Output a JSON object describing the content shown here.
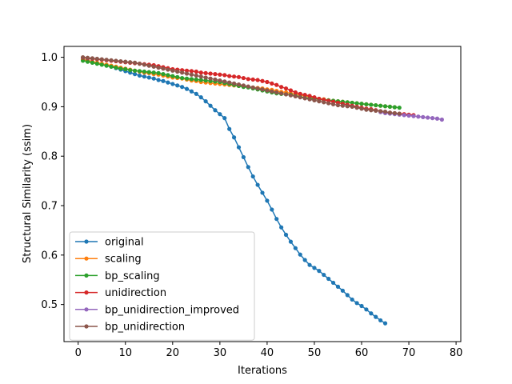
{
  "chart_data": {
    "type": "line",
    "title": "",
    "xlabel": "Iterations",
    "ylabel": "Structural Similarity (ssim)",
    "xlim": [
      -3,
      81
    ],
    "ylim": [
      0.425,
      1.022
    ],
    "xticks": [
      0,
      10,
      20,
      30,
      40,
      50,
      60,
      70,
      80
    ],
    "yticks": [
      0.5,
      0.6,
      0.7,
      0.8,
      0.9,
      1.0
    ],
    "xtick_labels": [
      "0",
      "10",
      "20",
      "30",
      "40",
      "50",
      "60",
      "70",
      "80"
    ],
    "ytick_labels": [
      "0.5",
      "0.6",
      "0.7",
      "0.8",
      "0.9",
      "1.0"
    ],
    "grid": false,
    "legend_position": "lower-left",
    "markers": true,
    "series": [
      {
        "name": "original",
        "color": "#1f77b4",
        "x_start": 1,
        "values": [
          0.995,
          0.994,
          0.991,
          0.988,
          0.986,
          0.984,
          0.981,
          0.978,
          0.975,
          0.972,
          0.969,
          0.966,
          0.963,
          0.961,
          0.959,
          0.957,
          0.954,
          0.952,
          0.949,
          0.946,
          0.943,
          0.94,
          0.936,
          0.931,
          0.926,
          0.919,
          0.911,
          0.902,
          0.893,
          0.885,
          0.877,
          0.855,
          0.838,
          0.818,
          0.798,
          0.778,
          0.759,
          0.742,
          0.726,
          0.71,
          0.692,
          0.673,
          0.656,
          0.641,
          0.627,
          0.614,
          0.601,
          0.59,
          0.58,
          0.574,
          0.568,
          0.56,
          0.552,
          0.544,
          0.536,
          0.528,
          0.519,
          0.51,
          0.503,
          0.497,
          0.49,
          0.482,
          0.475,
          0.468,
          0.462
        ]
      },
      {
        "name": "scaling",
        "color": "#ff7f0e",
        "x_start": 1,
        "values": [
          0.995,
          0.993,
          0.991,
          0.989,
          0.987,
          0.985,
          0.983,
          0.981,
          0.979,
          0.977,
          0.975,
          0.973,
          0.971,
          0.969,
          0.968,
          0.966,
          0.965,
          0.963,
          0.961,
          0.959,
          0.958,
          0.957,
          0.955,
          0.953,
          0.952,
          0.95,
          0.949,
          0.948,
          0.947,
          0.946,
          0.945,
          0.944,
          0.943,
          0.942,
          0.941,
          0.94,
          0.939,
          0.938,
          0.937,
          0.935,
          0.934,
          0.932,
          0.93,
          0.929,
          0.927,
          0.925,
          0.923,
          0.922,
          0.92,
          0.918,
          0.916,
          0.915,
          0.913,
          0.912,
          0.911,
          0.91,
          0.909,
          0.908,
          0.907,
          0.906,
          0.905,
          0.904,
          0.903,
          0.902,
          0.901,
          0.9,
          0.899
        ]
      },
      {
        "name": "bp_scaling",
        "color": "#2ca02c",
        "x_start": 1,
        "values": [
          0.993,
          0.991,
          0.989,
          0.987,
          0.985,
          0.983,
          0.981,
          0.979,
          0.977,
          0.976,
          0.974,
          0.973,
          0.972,
          0.971,
          0.97,
          0.969,
          0.968,
          0.966,
          0.964,
          0.962,
          0.96,
          0.958,
          0.957,
          0.956,
          0.955,
          0.954,
          0.953,
          0.952,
          0.951,
          0.95,
          0.948,
          0.946,
          0.944,
          0.942,
          0.94,
          0.939,
          0.937,
          0.935,
          0.933,
          0.931,
          0.929,
          0.927,
          0.926,
          0.925,
          0.924,
          0.922,
          0.92,
          0.918,
          0.917,
          0.916,
          0.915,
          0.914,
          0.913,
          0.912,
          0.911,
          0.91,
          0.909,
          0.908,
          0.907,
          0.906,
          0.905,
          0.904,
          0.903,
          0.902,
          0.901,
          0.9,
          0.899,
          0.898
        ]
      },
      {
        "name": "unidirection",
        "color": "#d62728",
        "x_start": 1,
        "values": [
          0.999,
          0.998,
          0.997,
          0.996,
          0.995,
          0.994,
          0.993,
          0.992,
          0.991,
          0.99,
          0.989,
          0.988,
          0.987,
          0.986,
          0.985,
          0.984,
          0.982,
          0.98,
          0.978,
          0.976,
          0.975,
          0.974,
          0.973,
          0.972,
          0.971,
          0.969,
          0.968,
          0.967,
          0.966,
          0.965,
          0.964,
          0.962,
          0.961,
          0.96,
          0.958,
          0.956,
          0.955,
          0.954,
          0.952,
          0.95,
          0.947,
          0.944,
          0.94,
          0.937,
          0.933,
          0.929,
          0.926,
          0.924,
          0.922,
          0.919,
          0.916,
          0.914,
          0.912,
          0.91,
          0.908,
          0.906,
          0.904,
          0.902,
          0.9,
          0.898,
          0.896,
          0.895,
          0.893,
          0.891,
          0.889,
          0.888,
          0.887,
          0.886,
          0.885,
          0.884,
          0.883
        ]
      },
      {
        "name": "bp_unidirection_improved",
        "color": "#9467bd",
        "x_start": 64,
        "values": [
          0.889,
          0.887,
          0.886,
          0.885,
          0.884,
          0.883,
          0.882,
          0.881,
          0.88,
          0.879,
          0.878,
          0.877,
          0.876,
          0.874
        ]
      },
      {
        "name": "bp_unidirection",
        "color": "#8c564b",
        "x_start": 1,
        "values": [
          1.0,
          0.999,
          0.998,
          0.997,
          0.996,
          0.995,
          0.994,
          0.993,
          0.992,
          0.991,
          0.99,
          0.989,
          0.987,
          0.985,
          0.983,
          0.981,
          0.979,
          0.977,
          0.975,
          0.973,
          0.971,
          0.969,
          0.967,
          0.965,
          0.963,
          0.961,
          0.959,
          0.957,
          0.955,
          0.953,
          0.951,
          0.949,
          0.947,
          0.945,
          0.943,
          0.941,
          0.939,
          0.937,
          0.935,
          0.933,
          0.931,
          0.929,
          0.927,
          0.925,
          0.923,
          0.921,
          0.919,
          0.917,
          0.915,
          0.913,
          0.911,
          0.909,
          0.907,
          0.905,
          0.903,
          0.902,
          0.901,
          0.9,
          0.898,
          0.896,
          0.894,
          0.893,
          0.892,
          0.891,
          0.89,
          0.888,
          0.887,
          0.886
        ]
      }
    ]
  }
}
